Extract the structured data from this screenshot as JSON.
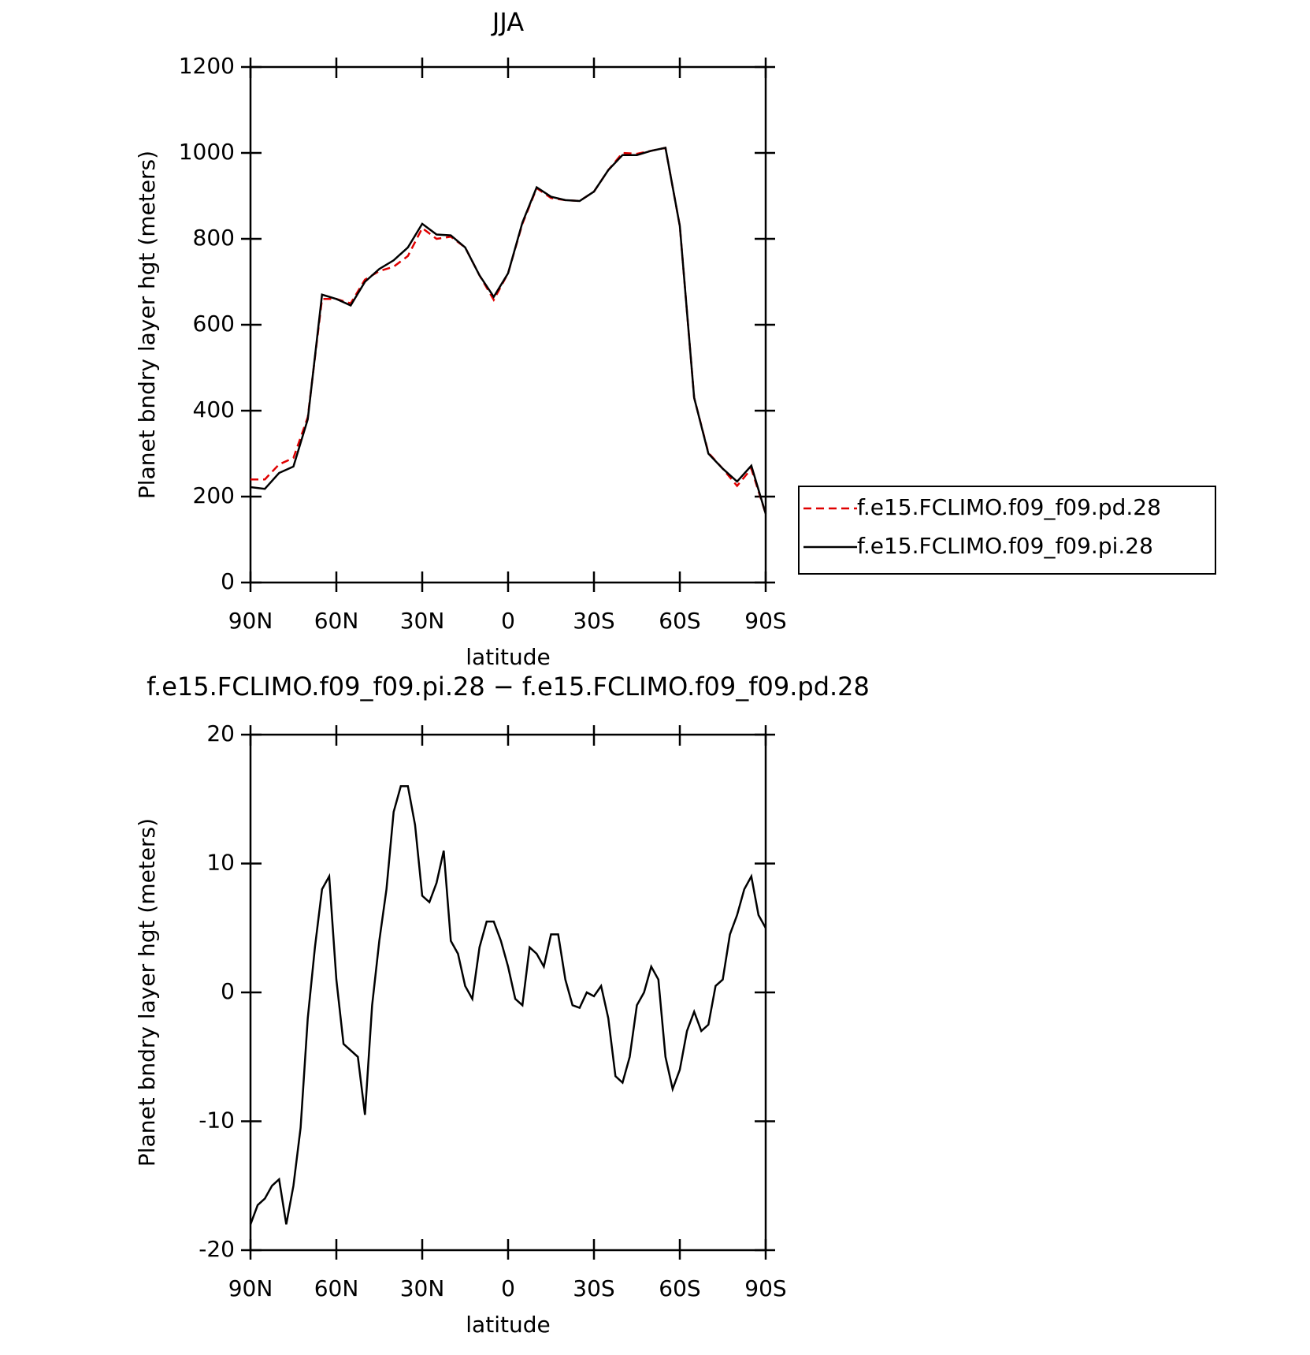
{
  "chart_data": [
    {
      "type": "line",
      "title": "JJA",
      "xlabel": "latitude",
      "ylabel": "Planet bndry layer hgt (meters)",
      "x": [
        90,
        85,
        80,
        75,
        70,
        65,
        60,
        55,
        50,
        45,
        40,
        35,
        30,
        25,
        20,
        15,
        10,
        5,
        0,
        -5,
        -10,
        -15,
        -20,
        -25,
        -30,
        -35,
        -40,
        -45,
        -50,
        -55,
        -60,
        -65,
        -70,
        -75,
        -80,
        -85,
        -90
      ],
      "xlim": [
        90,
        -90
      ],
      "xticks": [
        {
          "value": 90,
          "label": "90N"
        },
        {
          "value": 60,
          "label": "60N"
        },
        {
          "value": 30,
          "label": "30N"
        },
        0,
        {
          "value": -30,
          "label": "30S"
        },
        {
          "value": -60,
          "label": "60S"
        },
        {
          "value": -90,
          "label": "90S"
        }
      ],
      "ylim": [
        0,
        1200
      ],
      "yticks": [
        0,
        200,
        400,
        600,
        800,
        1000,
        1200
      ],
      "legend": "right",
      "series": [
        {
          "name": "f.e15.FCLIMO.f09_f09.pd.28",
          "color": "#e00000",
          "style": "dashed",
          "values": [
            240,
            240,
            275,
            290,
            385,
            660,
            660,
            650,
            705,
            725,
            735,
            760,
            825,
            800,
            805,
            780,
            715,
            658,
            720,
            835,
            918,
            895,
            890,
            888,
            910,
            960,
            1000,
            998,
            1005,
            1012,
            830,
            430,
            302,
            265,
            225,
            265,
            160
          ]
        },
        {
          "name": "f.e15.FCLIMO.f09_f09.pi.28",
          "color": "#000000",
          "style": "solid",
          "values": [
            222,
            218,
            255,
            270,
            380,
            670,
            660,
            645,
            700,
            730,
            750,
            780,
            835,
            810,
            808,
            780,
            715,
            665,
            720,
            838,
            920,
            898,
            890,
            888,
            910,
            960,
            995,
            995,
            1005,
            1012,
            830,
            430,
            300,
            265,
            235,
            272,
            160
          ]
        }
      ]
    },
    {
      "type": "line",
      "title": "f.e15.FCLIMO.f09_f09.pi.28 − f.e15.FCLIMO.f09_f09.pd.28",
      "xlabel": "latitude",
      "ylabel": "Planet bndry layer hgt (meters)",
      "x": [
        90,
        87.5,
        85,
        82.5,
        80,
        77.5,
        75,
        72.5,
        70,
        67.5,
        65,
        62.5,
        60,
        57.5,
        55,
        52.5,
        50,
        47.5,
        45,
        42.5,
        40,
        37.5,
        35,
        32.5,
        30,
        27.5,
        25,
        22.5,
        20,
        17.5,
        15,
        12.5,
        10,
        7.5,
        5,
        2.5,
        0,
        -2.5,
        -5,
        -7.5,
        -10,
        -12.5,
        -15,
        -17.5,
        -20,
        -22.5,
        -25,
        -27.5,
        -30,
        -32.5,
        -35,
        -37.5,
        -40,
        -42.5,
        -45,
        -47.5,
        -50,
        -52.5,
        -55,
        -57.5,
        -60,
        -62.5,
        -65,
        -67.5,
        -70,
        -72.5,
        -75,
        -77.5,
        -80,
        -82.5,
        -85,
        -87.5,
        -90
      ],
      "xlim": [
        90,
        -90
      ],
      "xticks": [
        {
          "value": 90,
          "label": "90N"
        },
        {
          "value": 60,
          "label": "60N"
        },
        {
          "value": 30,
          "label": "30N"
        },
        0,
        {
          "value": -30,
          "label": "30S"
        },
        {
          "value": -60,
          "label": "60S"
        },
        {
          "value": -90,
          "label": "90S"
        }
      ],
      "ylim": [
        -20,
        20
      ],
      "yticks": [
        -20,
        -10,
        0,
        10,
        20
      ],
      "series": [
        {
          "color": "#000000",
          "style": "solid",
          "values": [
            -18,
            -16.5,
            -16,
            -15,
            -14.5,
            -18,
            -15,
            -10.5,
            -2,
            3.5,
            8,
            9,
            1,
            -4,
            -4.5,
            -5,
            -9.5,
            -1,
            4,
            8,
            14,
            16,
            16,
            13,
            7.5,
            7,
            8.5,
            11,
            4,
            3,
            0.5,
            -0.5,
            3.5,
            5.5,
            5.5,
            4,
            2,
            -0.5,
            -1,
            3.5,
            3,
            2,
            4.5,
            4.5,
            1,
            -1,
            -1.2,
            0,
            -0.3,
            0.5,
            -2,
            -6.5,
            -7,
            -5,
            -1,
            0,
            2,
            1,
            -5,
            -7.5,
            -6,
            -3,
            -1.5,
            -3,
            -2.5,
            0.5,
            1,
            4.5,
            6,
            8,
            9,
            6,
            5
          ]
        }
      ]
    }
  ]
}
